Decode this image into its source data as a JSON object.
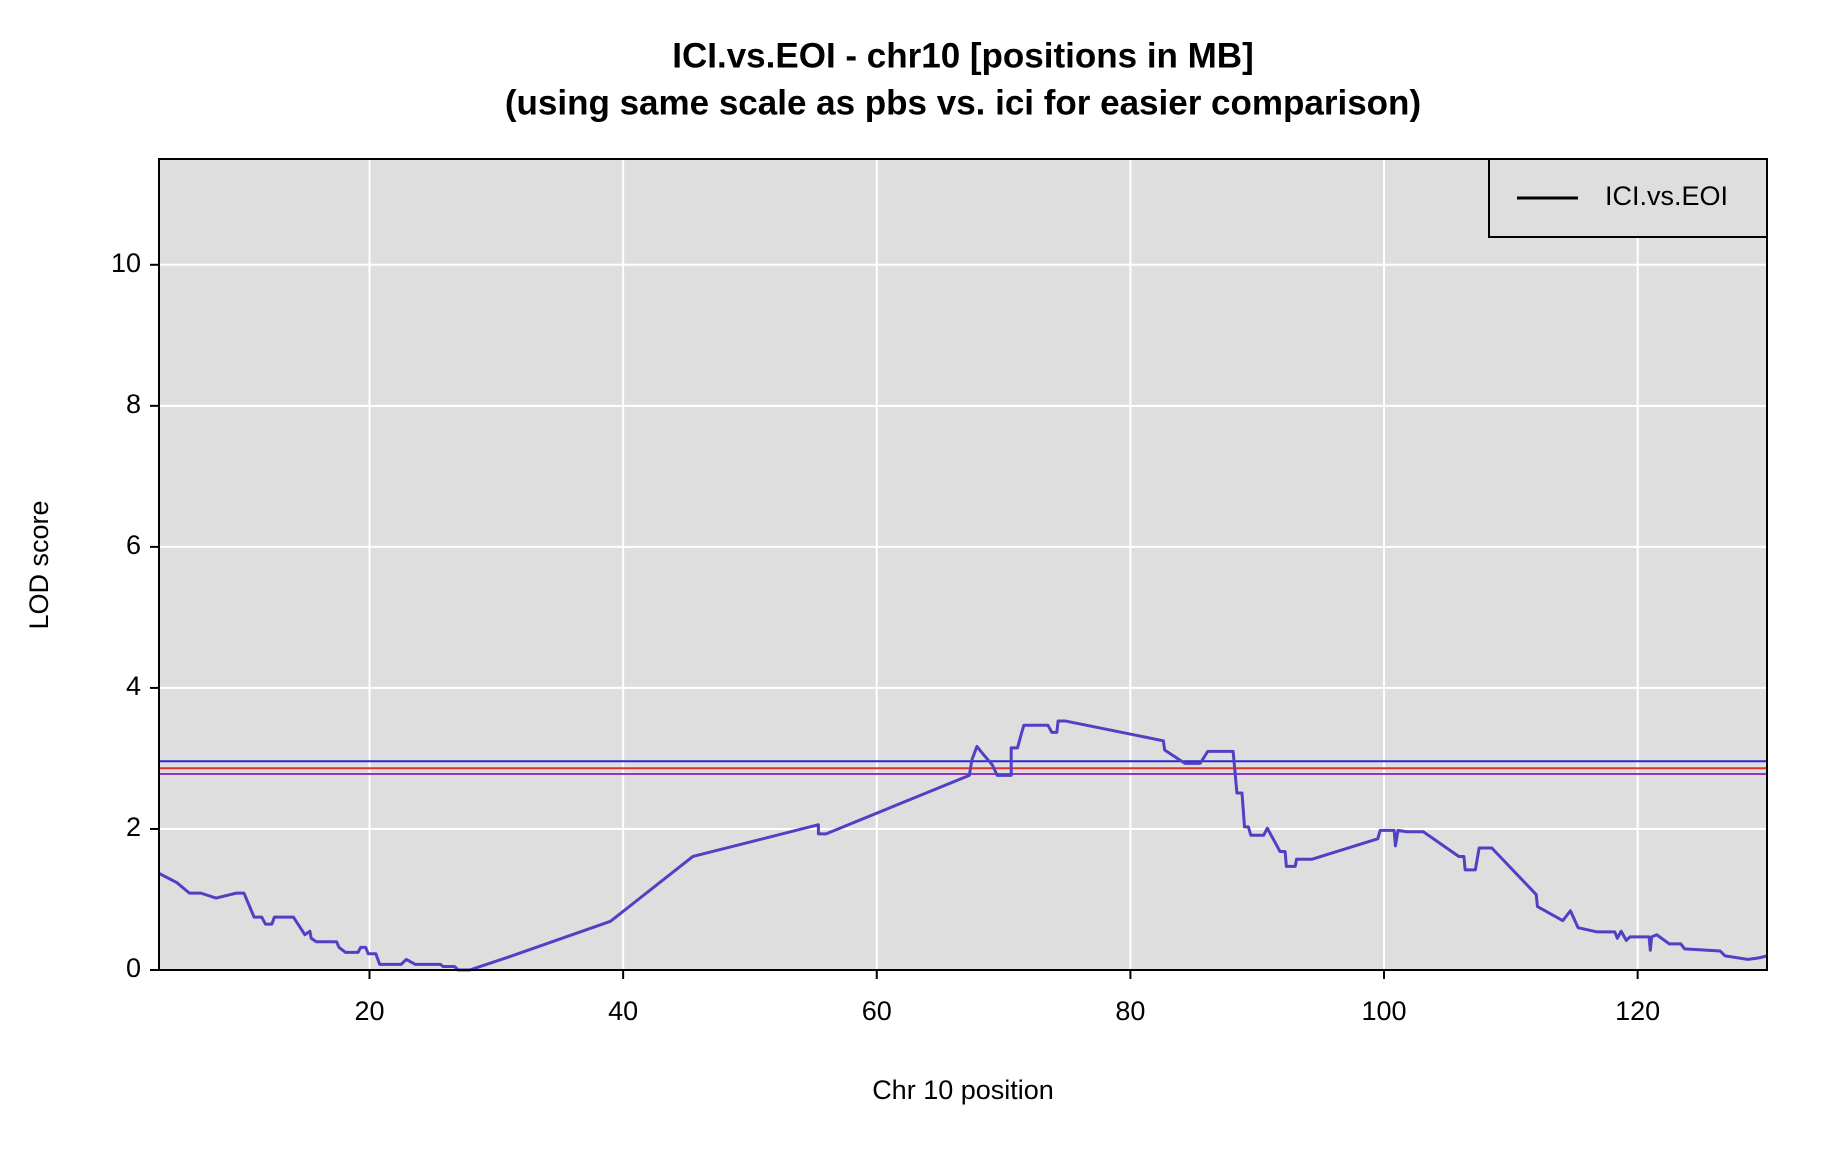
{
  "chart_data": {
    "type": "line",
    "title": "ICI.vs.EOI - chr10 [positions in MB]",
    "subtitle": "(using same scale as pbs vs. ici for easier comparison)",
    "x_label": "Chr 10 position",
    "y_label": "LOD score",
    "xlim": [
      3.4,
      130.2
    ],
    "ylim": [
      0,
      11.5
    ],
    "xticks": [
      20,
      40,
      60,
      80,
      100,
      120
    ],
    "yticks": [
      0,
      2,
      4,
      6,
      8,
      10
    ],
    "grid": true,
    "legend": "top-right",
    "legend_line_color": "#000000",
    "hlines": [
      {
        "value": 2.96,
        "color": "#2a2ad8"
      },
      {
        "value": 2.86,
        "color": "#e03030"
      },
      {
        "value": 2.78,
        "color": "#9933cc"
      }
    ],
    "x": [
      3.4,
      4.8,
      5.8,
      6.7,
      7.9,
      9.5,
      10.1,
      10.9,
      11.5,
      11.8,
      12.3,
      12.5,
      14.0,
      14.9,
      15.3,
      15.4,
      15.8,
      17.4,
      17.6,
      18.1,
      19.1,
      19.3,
      19.7,
      19.9,
      20.5,
      20.8,
      22.5,
      22.9,
      23.6,
      25.6,
      25.8,
      26.7,
      27.0,
      27.9,
      30.9,
      39.0,
      45.5,
      55.4,
      55.4,
      56.0,
      67.3,
      67.5,
      67.9,
      68.3,
      69.1,
      69.5,
      70.6,
      70.6,
      71.1,
      71.4,
      71.6,
      73.5,
      73.8,
      74.2,
      74.3,
      74.9,
      82.6,
      82.7,
      84.3,
      85.5,
      86.1,
      88.1,
      88.4,
      88.8,
      89.0,
      89.3,
      89.5,
      90.5,
      90.8,
      91.8,
      92.2,
      92.3,
      93.0,
      93.1,
      94.3,
      99.5,
      99.7,
      100.8,
      100.9,
      101.1,
      101.8,
      103.1,
      105.9,
      106.3,
      106.4,
      107.2,
      107.5,
      108.5,
      112.0,
      112.1,
      114.1,
      114.7,
      115.3,
      116.8,
      118.2,
      118.4,
      118.7,
      119.1,
      119.4,
      120.9,
      121.0,
      121.1,
      121.5,
      122.5,
      123.4,
      123.7,
      126.5,
      126.9,
      128.7,
      129.5,
      130.2
    ],
    "series": [
      {
        "name": "ICI.vs.EOI",
        "color": "#5040c4",
        "values": [
          1.37,
          1.24,
          1.09,
          1.09,
          1.02,
          1.09,
          1.09,
          0.75,
          0.75,
          0.65,
          0.65,
          0.75,
          0.75,
          0.5,
          0.55,
          0.45,
          0.4,
          0.4,
          0.32,
          0.25,
          0.25,
          0.32,
          0.32,
          0.23,
          0.23,
          0.08,
          0.08,
          0.15,
          0.08,
          0.08,
          0.05,
          0.05,
          0,
          0,
          0.18,
          0.69,
          1.61,
          2.06,
          1.93,
          1.93,
          2.76,
          2.98,
          3.17,
          3.08,
          2.91,
          2.76,
          2.76,
          3.15,
          3.15,
          3.35,
          3.47,
          3.47,
          3.37,
          3.37,
          3.53,
          3.53,
          3.25,
          3.12,
          2.93,
          2.93,
          3.1,
          3.1,
          2.51,
          2.51,
          2.03,
          2.03,
          1.91,
          1.91,
          2.01,
          1.68,
          1.68,
          1.47,
          1.47,
          1.57,
          1.57,
          1.86,
          1.98,
          1.98,
          1.76,
          1.98,
          1.96,
          1.96,
          1.61,
          1.61,
          1.42,
          1.42,
          1.73,
          1.73,
          1.07,
          0.9,
          0.7,
          0.84,
          0.6,
          0.54,
          0.54,
          0.45,
          0.55,
          0.42,
          0.47,
          0.47,
          0.28,
          0.47,
          0.5,
          0.37,
          0.37,
          0.3,
          0.27,
          0.2,
          0.15,
          0.17,
          0.2
        ]
      }
    ]
  }
}
